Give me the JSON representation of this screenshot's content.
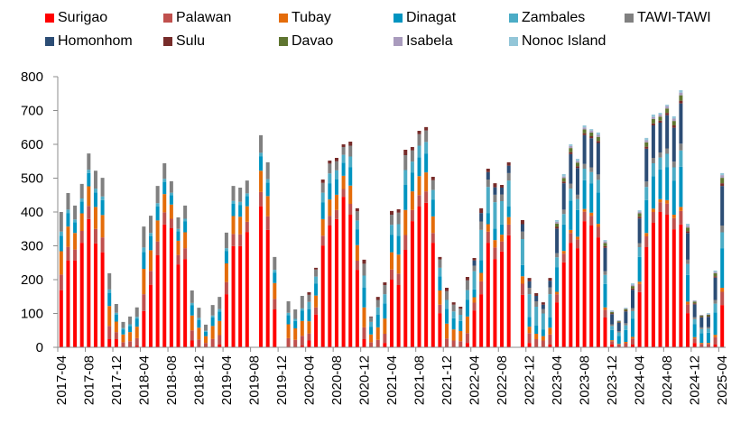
{
  "chart_data": {
    "type": "bar",
    "stacked": true,
    "title": "",
    "xlabel": "",
    "ylabel": "",
    "ylim": [
      0,
      800
    ],
    "yticks": [
      0,
      100,
      200,
      300,
      400,
      500,
      600,
      700,
      800
    ],
    "grid": false,
    "legend_position": "top",
    "x_tick_labels": [
      "2017-04",
      "2017-08",
      "2017-12",
      "2018-04",
      "2018-08",
      "2018-12",
      "2019-04",
      "2019-08",
      "2019-12",
      "2020-04",
      "2020-08",
      "2020-12",
      "2021-04",
      "2021-08",
      "2021-12",
      "2022-04",
      "2022-08",
      "2022-12",
      "2023-04",
      "2023-08",
      "2023-12",
      "2024-04",
      "2024-08",
      "2024-12",
      "2025-04"
    ],
    "categories": [
      "2017-04",
      "2017-05",
      "2017-06",
      "2017-07",
      "2017-08",
      "2017-09",
      "2017-10",
      "2017-11",
      "2017-12",
      "2018-01",
      "2018-02",
      "2018-03",
      "2018-04",
      "2018-05",
      "2018-06",
      "2018-07",
      "2018-08",
      "2018-09",
      "2018-10",
      "2018-11",
      "2018-12",
      "2019-01",
      "2019-02",
      "2019-03",
      "2019-04",
      "2019-05",
      "2019-06",
      "2019-07",
      "2019-08",
      "2019-09",
      "2019-10",
      "2019-11",
      "2019-12",
      "2020-01",
      "2020-02",
      "2020-03",
      "2020-04",
      "2020-05",
      "2020-06",
      "2020-07",
      "2020-08",
      "2020-09",
      "2020-10",
      "2020-11",
      "2020-12",
      "2021-01",
      "2021-02",
      "2021-03",
      "2021-04",
      "2021-05",
      "2021-06",
      "2021-07",
      "2021-08",
      "2021-09",
      "2021-10",
      "2021-11",
      "2021-12",
      "2022-01",
      "2022-02",
      "2022-03",
      "2022-04",
      "2022-05",
      "2022-06",
      "2022-07",
      "2022-08",
      "2022-09",
      "2022-10",
      "2022-11",
      "2022-12",
      "2023-01",
      "2023-02",
      "2023-03",
      "2023-04",
      "2023-05",
      "2023-06",
      "2023-07",
      "2023-08",
      "2023-09",
      "2023-10",
      "2023-11",
      "2023-12",
      "2024-01",
      "2024-02",
      "2024-03",
      "2024-04",
      "2024-05",
      "2024-06",
      "2024-07",
      "2024-08",
      "2024-09",
      "2024-10",
      "2024-11",
      "2024-12",
      "2025-01",
      "2025-02",
      "2025-03",
      "2025-04"
    ],
    "series": [
      {
        "name": "Surigao",
        "color": "#ff0000",
        "values": [
          169,
          257,
          257,
          309,
          379,
          307,
          281,
          24,
          24,
          0,
          0,
          4,
          107,
          185,
          272,
          363,
          352,
          245,
          261,
          20,
          0,
          0,
          0,
          8,
          157,
          299,
          299,
          341,
          0,
          417,
          347,
          112,
          0,
          0,
          0,
          4,
          20,
          97,
          301,
          360,
          379,
          445,
          392,
          229,
          24,
          1,
          0,
          13,
          200,
          184,
          288,
          373,
          416,
          427,
          309,
          101,
          0,
          0,
          0,
          13,
          109,
          157,
          309,
          261,
          283,
          331,
          0,
          155,
          13,
          0,
          0,
          8,
          133,
          251,
          309,
          293,
          373,
          360,
          325,
          88,
          8,
          0,
          0,
          8,
          163,
          296,
          368,
          400,
          392,
          349,
          363,
          101,
          13,
          0,
          0,
          8,
          125
        ]
      },
      {
        "name": "Palawan",
        "color": "#c0504d",
        "values": [
          46,
          40,
          32,
          35,
          39,
          43,
          44,
          39,
          21,
          15,
          18,
          23,
          50,
          41,
          41,
          36,
          28,
          28,
          32,
          30,
          23,
          13,
          25,
          28,
          36,
          36,
          35,
          30,
          0,
          42,
          40,
          31,
          0,
          27,
          22,
          30,
          21,
          21,
          29,
          29,
          27,
          23,
          32,
          27,
          35,
          14,
          22,
          27,
          30,
          34,
          44,
          33,
          34,
          34,
          29,
          25,
          26,
          20,
          18,
          29,
          23,
          38,
          33,
          34,
          30,
          32,
          0,
          33,
          29,
          24,
          20,
          30,
          24,
          26,
          29,
          26,
          28,
          29,
          31,
          23,
          10,
          8,
          12,
          18,
          24,
          32,
          32,
          29,
          33,
          33,
          40,
          26,
          13,
          10,
          10,
          22,
          39
        ]
      },
      {
        "name": "Tubay",
        "color": "#e46c0a",
        "values": [
          69,
          60,
          49,
          52,
          58,
          65,
          66,
          59,
          31,
          23,
          27,
          34,
          75,
          61,
          62,
          54,
          42,
          42,
          47,
          44,
          35,
          20,
          38,
          42,
          55,
          53,
          52,
          46,
          0,
          63,
          60,
          47,
          0,
          41,
          34,
          44,
          36,
          35,
          49,
          48,
          45,
          39,
          54,
          46,
          59,
          23,
          37,
          45,
          51,
          56,
          74,
          55,
          56,
          56,
          49,
          42,
          44,
          33,
          30,
          49,
          16,
          25,
          22,
          22,
          20,
          22,
          0,
          22,
          19,
          16,
          13,
          20,
          7,
          8,
          9,
          8,
          8,
          9,
          9,
          7,
          3,
          2,
          4,
          5,
          7,
          10,
          10,
          9,
          10,
          10,
          12,
          8,
          4,
          3,
          3,
          7,
          12
        ]
      },
      {
        "name": "Dinagat",
        "color": "#0094c0",
        "values": [
          46,
          40,
          32,
          35,
          39,
          43,
          44,
          39,
          21,
          15,
          18,
          23,
          50,
          41,
          41,
          36,
          28,
          28,
          32,
          30,
          23,
          13,
          25,
          28,
          36,
          36,
          35,
          30,
          0,
          42,
          40,
          31,
          0,
          27,
          22,
          30,
          36,
          35,
          49,
          48,
          45,
          39,
          54,
          46,
          59,
          23,
          37,
          45,
          51,
          56,
          74,
          55,
          56,
          56,
          49,
          42,
          44,
          33,
          30,
          49,
          23,
          38,
          33,
          34,
          30,
          32,
          0,
          33,
          29,
          24,
          20,
          30,
          73,
          78,
          87,
          79,
          85,
          86,
          93,
          69,
          30,
          24,
          35,
          54,
          73,
          97,
          96,
          88,
          98,
          100,
          119,
          79,
          38,
          29,
          30,
          66,
          117
        ]
      },
      {
        "name": "Zambales",
        "color": "#4bacc6",
        "values": [
          12,
          10,
          8,
          9,
          10,
          11,
          11,
          10,
          5,
          4,
          5,
          6,
          13,
          10,
          10,
          9,
          7,
          7,
          8,
          7,
          6,
          3,
          6,
          7,
          9,
          9,
          9,
          8,
          0,
          11,
          10,
          8,
          0,
          7,
          6,
          7,
          21,
          21,
          29,
          29,
          27,
          23,
          32,
          27,
          35,
          14,
          22,
          27,
          30,
          34,
          44,
          33,
          34,
          34,
          29,
          25,
          26,
          20,
          18,
          29,
          54,
          89,
          77,
          78,
          69,
          76,
          0,
          77,
          67,
          56,
          47,
          69,
          29,
          31,
          35,
          32,
          34,
          34,
          37,
          27,
          12,
          10,
          14,
          22,
          29,
          39,
          38,
          35,
          39,
          40,
          48,
          32,
          15,
          12,
          12,
          26,
          47
        ]
      },
      {
        "name": "TAWI-TAWI",
        "color": "#808080",
        "values": [
          58,
          49,
          41,
          43,
          48,
          53,
          55,
          48,
          26,
          18,
          23,
          28,
          62,
          51,
          51,
          46,
          34,
          34,
          39,
          37,
          30,
          18,
          31,
          36,
          46,
          44,
          42,
          38,
          0,
          52,
          50,
          38,
          0,
          34,
          28,
          37,
          21,
          21,
          29,
          29,
          27,
          23,
          32,
          27,
          35,
          14,
          22,
          27,
          30,
          34,
          44,
          33,
          34,
          34,
          29,
          25,
          26,
          20,
          18,
          29,
          16,
          25,
          22,
          22,
          20,
          22,
          0,
          22,
          19,
          16,
          13,
          20,
          12,
          13,
          15,
          13,
          14,
          14,
          16,
          11,
          5,
          4,
          6,
          9,
          12,
          16,
          16,
          15,
          16,
          17,
          20,
          13,
          6,
          5,
          5,
          11,
          20
        ]
      },
      {
        "name": "Homonhom",
        "color": "#2c4d75",
        "values": [
          0,
          0,
          0,
          0,
          0,
          0,
          0,
          0,
          0,
          0,
          0,
          0,
          0,
          0,
          0,
          0,
          0,
          0,
          0,
          0,
          0,
          0,
          0,
          0,
          0,
          0,
          0,
          0,
          0,
          0,
          0,
          0,
          0,
          0,
          0,
          0,
          0,
          0,
          0,
          0,
          0,
          0,
          0,
          0,
          0,
          0,
          0,
          0,
          0,
          0,
          0,
          0,
          0,
          0,
          0,
          0,
          0,
          0,
          0,
          0,
          16,
          25,
          22,
          22,
          20,
          22,
          0,
          22,
          19,
          16,
          13,
          20,
          73,
          78,
          87,
          79,
          85,
          86,
          93,
          69,
          30,
          24,
          35,
          54,
          73,
          97,
          96,
          88,
          98,
          100,
          119,
          79,
          38,
          29,
          30,
          66,
          117
        ]
      },
      {
        "name": "Sulu",
        "color": "#772c2a",
        "values": [
          0,
          0,
          0,
          0,
          0,
          0,
          0,
          0,
          0,
          0,
          0,
          0,
          0,
          0,
          0,
          0,
          0,
          0,
          0,
          0,
          0,
          0,
          0,
          0,
          0,
          0,
          0,
          0,
          0,
          0,
          0,
          0,
          0,
          0,
          0,
          0,
          8,
          5,
          10,
          9,
          10,
          8,
          12,
          9,
          12,
          2,
          9,
          8,
          11,
          10,
          16,
          10,
          10,
          10,
          10,
          7,
          10,
          7,
          6,
          10,
          7,
          14,
          10,
          12,
          8,
          10,
          0,
          12,
          10,
          8,
          7,
          8,
          5,
          5,
          6,
          5,
          6,
          6,
          6,
          5,
          2,
          2,
          2,
          4,
          5,
          6,
          6,
          6,
          7,
          7,
          8,
          5,
          3,
          2,
          2,
          4,
          8
        ]
      },
      {
        "name": "Davao",
        "color": "#5f7530",
        "values": [
          0,
          0,
          0,
          0,
          0,
          0,
          0,
          0,
          0,
          0,
          0,
          0,
          0,
          0,
          0,
          0,
          0,
          0,
          0,
          0,
          0,
          0,
          0,
          0,
          0,
          0,
          0,
          0,
          0,
          0,
          0,
          0,
          0,
          0,
          0,
          0,
          0,
          0,
          0,
          0,
          0,
          0,
          0,
          0,
          0,
          0,
          0,
          0,
          0,
          0,
          0,
          0,
          0,
          0,
          0,
          0,
          0,
          0,
          0,
          0,
          0,
          0,
          0,
          0,
          0,
          0,
          0,
          0,
          0,
          0,
          0,
          0,
          10,
          10,
          12,
          11,
          11,
          11,
          12,
          9,
          4,
          3,
          5,
          7,
          10,
          13,
          13,
          12,
          13,
          13,
          16,
          11,
          5,
          4,
          4,
          9,
          16
        ]
      },
      {
        "name": "Isabela",
        "color": "#a99bbd",
        "values": [
          0,
          0,
          0,
          0,
          0,
          0,
          0,
          0,
          0,
          0,
          0,
          0,
          0,
          0,
          0,
          0,
          0,
          0,
          0,
          0,
          0,
          0,
          0,
          0,
          0,
          0,
          0,
          0,
          0,
          0,
          0,
          0,
          0,
          0,
          0,
          0,
          0,
          0,
          0,
          0,
          0,
          0,
          0,
          0,
          0,
          0,
          0,
          0,
          0,
          0,
          0,
          0,
          0,
          0,
          0,
          0,
          0,
          0,
          0,
          0,
          0,
          0,
          0,
          0,
          0,
          0,
          0,
          0,
          0,
          0,
          0,
          0,
          5,
          5,
          6,
          5,
          6,
          6,
          6,
          5,
          2,
          2,
          2,
          4,
          5,
          6,
          6,
          6,
          7,
          7,
          8,
          5,
          3,
          2,
          2,
          4,
          8
        ]
      },
      {
        "name": "Nonoc Island",
        "color": "#93c6d8",
        "values": [
          0,
          0,
          0,
          0,
          0,
          0,
          0,
          0,
          0,
          0,
          0,
          0,
          0,
          0,
          0,
          0,
          0,
          0,
          0,
          0,
          0,
          0,
          0,
          0,
          0,
          0,
          0,
          0,
          0,
          0,
          0,
          0,
          0,
          0,
          0,
          0,
          0,
          0,
          0,
          0,
          0,
          0,
          0,
          0,
          0,
          0,
          0,
          0,
          0,
          0,
          0,
          0,
          0,
          0,
          0,
          0,
          0,
          0,
          0,
          0,
          0,
          0,
          0,
          0,
          0,
          0,
          0,
          0,
          0,
          0,
          0,
          0,
          5,
          7,
          5,
          6,
          6,
          4,
          7,
          4,
          3,
          1,
          2,
          4,
          4,
          7,
          7,
          5,
          4,
          7,
          7,
          6,
          1,
          0,
          3,
          4,
          6
        ]
      }
    ]
  }
}
